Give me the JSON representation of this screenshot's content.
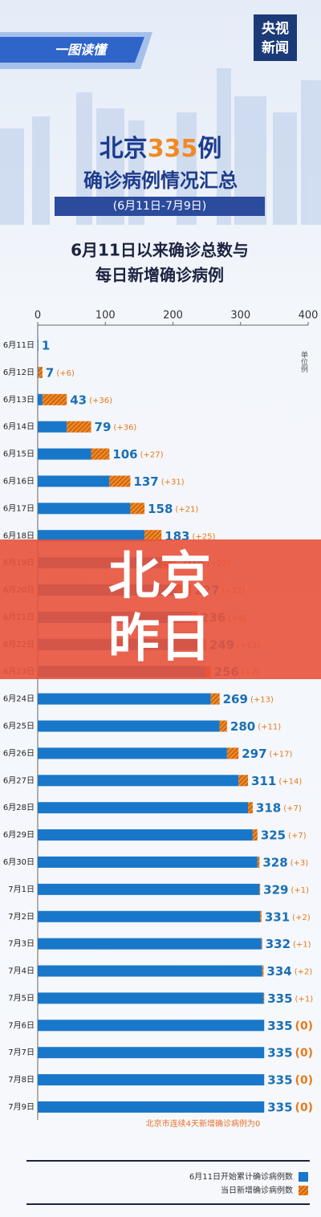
{
  "header": {
    "ribbon": "一图读懂",
    "logo_top": "央视",
    "logo_bottom": "新闻",
    "title_a": "北京",
    "title_num": "335",
    "title_b": "例",
    "subtitle": "确诊病例情况汇总",
    "date_range": "(6月11日-7月9日)"
  },
  "chart_data": {
    "type": "bar",
    "orientation": "horizontal",
    "stacked": true,
    "title_lines": [
      "6月11日以来确诊总数与",
      "每日新增确诊病例"
    ],
    "axis_unit": "单位例",
    "categories": [
      "6月11日",
      "6月12日",
      "6月13日",
      "6月14日",
      "6月15日",
      "6月16日",
      "6月17日",
      "6月18日",
      "6月19日",
      "6月20日",
      "6月21日",
      "6月22日",
      "6月23日",
      "6月24日",
      "6月25日",
      "6月26日",
      "6月27日",
      "6月28日",
      "6月29日",
      "6月30日",
      "7月1日",
      "7月2日",
      "7月3日",
      "7月4日",
      "7月5日",
      "7月6日",
      "7月7日",
      "7月8日",
      "7月9日"
    ],
    "series": [
      {
        "name": "6月11日开始累计确诊病例数",
        "color": "#1877c9",
        "values": [
          1,
          1,
          7,
          43,
          79,
          106,
          137,
          158,
          183,
          205,
          227,
          236,
          249,
          256,
          269,
          280,
          297,
          311,
          318,
          325,
          328,
          329,
          331,
          332,
          334,
          335,
          335,
          335,
          335
        ]
      },
      {
        "name": "当日新增确诊病例数",
        "color": "#f08a24",
        "hatched": true,
        "values": [
          null,
          6,
          36,
          36,
          27,
          31,
          21,
          25,
          22,
          22,
          9,
          13,
          7,
          13,
          11,
          17,
          14,
          7,
          7,
          3,
          1,
          2,
          1,
          2,
          1,
          0,
          0,
          0,
          0
        ],
        "value_labels": [
          null,
          "(+6)",
          "(+36)",
          "(+36)",
          "(+27)",
          "(+31)",
          "(+21)",
          "(+25)",
          "(+22)",
          "(+22)",
          "(+9)",
          "(+13)",
          "(+7)",
          "(+13)",
          "(+11)",
          "(+17)",
          "(+14)",
          "(+7)",
          "(+7)",
          "(+3)",
          "(+1)",
          "(+2)",
          "(+1)",
          "(+2)",
          "(+1)",
          "(0)",
          "(0)",
          "(0)",
          "(0)"
        ]
      }
    ],
    "totals": [
      1,
      7,
      43,
      79,
      106,
      137,
      158,
      183,
      205,
      227,
      236,
      249,
      256,
      269,
      280,
      297,
      311,
      318,
      325,
      328,
      329,
      331,
      332,
      334,
      335,
      335,
      335,
      335,
      335
    ],
    "xlim": [
      0,
      400
    ],
    "xticks": [
      0,
      100,
      200,
      300,
      400
    ],
    "note": "北京市连续4天新增确诊病例为0",
    "legend_position": "bottom-right"
  },
  "overlay": {
    "line1": "北京",
    "line2": "昨日"
  }
}
